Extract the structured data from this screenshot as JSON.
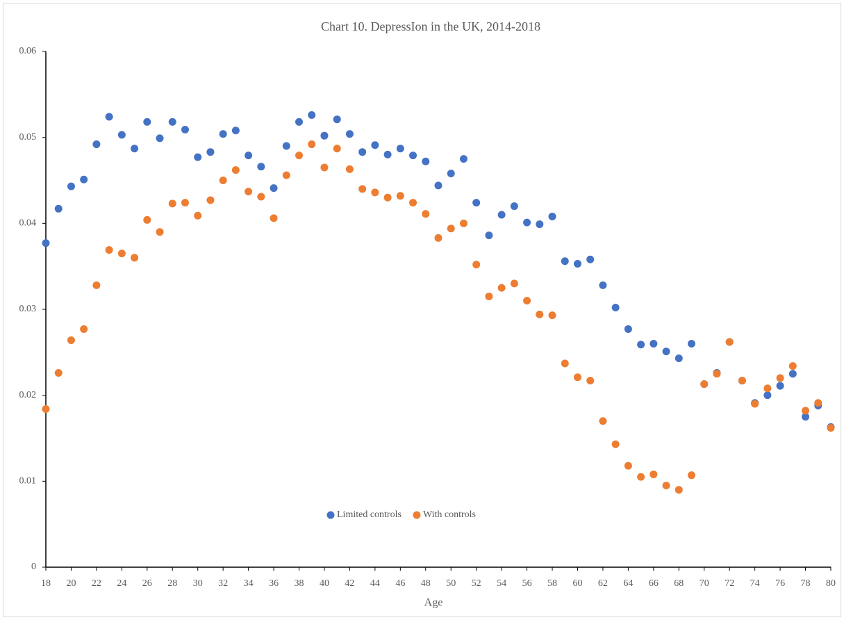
{
  "chart_data": {
    "type": "scatter",
    "title": "Chart 10.  DepressIon in the UK, 2014-2018",
    "x_label": "Age",
    "x": [
      18,
      19,
      20,
      21,
      22,
      23,
      24,
      25,
      26,
      27,
      28,
      29,
      30,
      31,
      32,
      33,
      34,
      35,
      36,
      37,
      38,
      39,
      40,
      41,
      42,
      43,
      44,
      45,
      46,
      47,
      48,
      49,
      50,
      51,
      52,
      53,
      54,
      55,
      56,
      57,
      58,
      59,
      60,
      61,
      62,
      63,
      64,
      65,
      66,
      67,
      68,
      69,
      70,
      71,
      72,
      73,
      74,
      75,
      76,
      77,
      78,
      79,
      80
    ],
    "series": [
      {
        "name": "Limited controls",
        "color": "#4472c4",
        "values": [
          0.0377,
          0.0417,
          0.0443,
          0.0451,
          0.0492,
          0.0524,
          0.0503,
          0.0487,
          0.0518,
          0.0499,
          0.0518,
          0.0509,
          0.0477,
          0.0483,
          0.0504,
          0.0508,
          0.0479,
          0.0466,
          0.0441,
          0.049,
          0.0518,
          0.0526,
          0.0502,
          0.0521,
          0.0504,
          0.0483,
          0.0491,
          0.048,
          0.0487,
          0.0479,
          0.0472,
          0.0444,
          0.0458,
          0.0475,
          0.0424,
          0.0386,
          0.041,
          0.042,
          0.0401,
          0.0399,
          0.0408,
          0.0356,
          0.0353,
          0.0358,
          0.0328,
          0.0302,
          0.0277,
          0.0259,
          0.026,
          0.0251,
          0.0243,
          0.026,
          0.0213,
          0.0226,
          0.0262,
          0.0217,
          0.0191,
          0.02,
          0.0211,
          0.0225,
          0.0175,
          0.0188,
          0.0163
        ]
      },
      {
        "name": "With controls",
        "color": "#ed7d31",
        "values": [
          0.0184,
          0.0226,
          0.0264,
          0.0277,
          0.0328,
          0.0369,
          0.0365,
          0.036,
          0.0404,
          0.039,
          0.0423,
          0.0424,
          0.0409,
          0.0427,
          0.045,
          0.0462,
          0.0437,
          0.0431,
          0.0406,
          0.0456,
          0.0479,
          0.0492,
          0.0465,
          0.0487,
          0.0463,
          0.044,
          0.0436,
          0.043,
          0.0432,
          0.0424,
          0.0411,
          0.0383,
          0.0394,
          0.04,
          0.0352,
          0.0315,
          0.0325,
          0.033,
          0.031,
          0.0294,
          0.0293,
          0.0237,
          0.0221,
          0.0217,
          0.017,
          0.0143,
          0.0118,
          0.0105,
          0.0108,
          0.0095,
          0.009,
          0.0107,
          0.0213,
          0.0225,
          0.0262,
          0.0217,
          0.019,
          0.0208,
          0.022,
          0.0234,
          0.0182,
          0.0191,
          0.0162
        ]
      }
    ],
    "xlim": [
      18,
      80
    ],
    "xticks": [
      18,
      20,
      22,
      24,
      26,
      28,
      30,
      32,
      34,
      36,
      38,
      40,
      42,
      44,
      46,
      48,
      50,
      52,
      54,
      56,
      58,
      60,
      62,
      64,
      66,
      68,
      70,
      72,
      74,
      76,
      78,
      80
    ],
    "ylim": [
      0,
      0.06
    ],
    "yticks": [
      0,
      0.01,
      0.02,
      0.03,
      0.04,
      0.05,
      0.06
    ],
    "legend": "bottom-center",
    "grid": false
  }
}
